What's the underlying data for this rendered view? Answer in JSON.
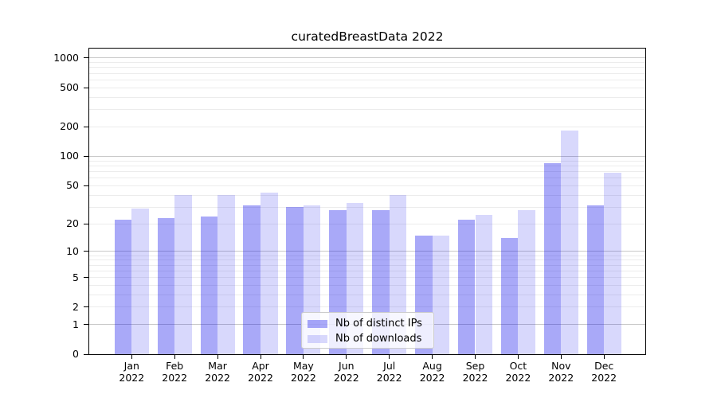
{
  "chart_data": {
    "type": "bar",
    "title": "curatedBreastData 2022",
    "categories": [
      "Jan 2022",
      "Feb 2022",
      "Mar 2022",
      "Apr 2022",
      "May 2022",
      "Jun 2022",
      "Jul 2022",
      "Aug 2022",
      "Sep 2022",
      "Oct 2022",
      "Nov 2022",
      "Dec 2022"
    ],
    "x_tick_months": [
      "Jan",
      "Feb",
      "Mar",
      "Apr",
      "May",
      "Jun",
      "Jul",
      "Aug",
      "Sep",
      "Oct",
      "Nov",
      "Dec"
    ],
    "x_tick_year": "2022",
    "series": [
      {
        "name": "Nb of distinct IPs",
        "color": "rgba(10,10,235,0.35)",
        "values": [
          22,
          23,
          24,
          31,
          30,
          28,
          28,
          15,
          22,
          14,
          86,
          31
        ]
      },
      {
        "name": "Nb of downloads",
        "color": "rgba(10,10,235,0.16)",
        "values": [
          29,
          40,
          40,
          42,
          31,
          33,
          40,
          15,
          25,
          28,
          184,
          68
        ]
      }
    ],
    "yscale": "log1p",
    "yticks": [
      0,
      1,
      2,
      5,
      10,
      20,
      50,
      100,
      200,
      500,
      1000
    ],
    "ylim": [
      0,
      1270
    ],
    "grid": "both",
    "legend": {
      "position": "lower center"
    },
    "colors": {
      "major_grid": "#c8c8c8",
      "minor_grid": "#ececec",
      "spine": "#000000",
      "text": "#000000",
      "background": "#ffffff"
    }
  }
}
